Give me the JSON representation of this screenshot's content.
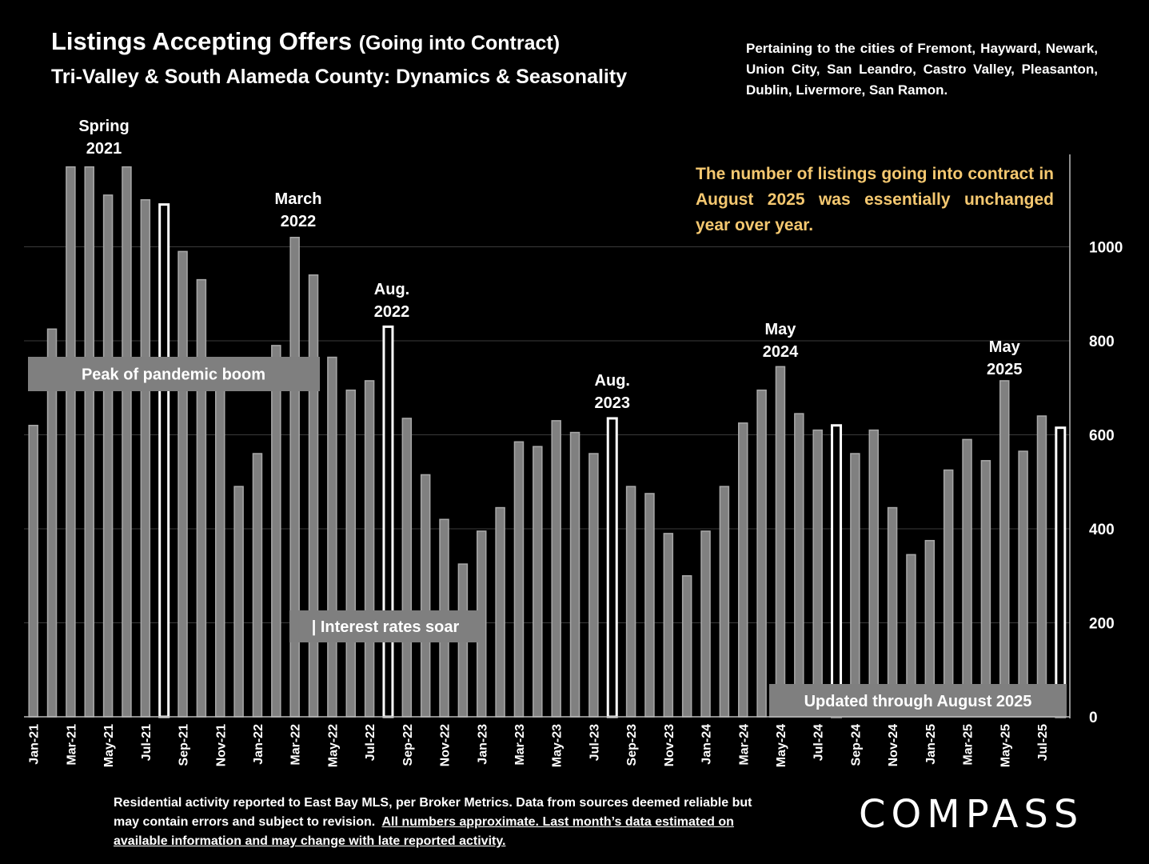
{
  "header": {
    "title": "Listings Accepting Offers",
    "title_paren": "(Going into Contract)",
    "subtitle": "Tri-Valley & South Alameda County: Dynamics & Seasonality",
    "cities": "Pertaining to the cities of Fremont, Hayward, Newark, Union City, San Leandro, Castro Valley, Pleasanton, Dublin, Livermore, San Ramon."
  },
  "callout": "The number of listings going into contract in August 2025 was essentially unchanged year over year.",
  "footer": {
    "note_plain": "Residential activity reported to East Bay MLS, per Broker Metrics. Data from sources deemed reliable but may contain errors and subject to revision.",
    "note_underlined": "All numbers approximate. Last month’s data estimated on available information and may change with late reported activity."
  },
  "logo": "COMPASS",
  "colors": {
    "bar": "#808080",
    "highlight_bar": "#ffffff",
    "callout": "#f5c870",
    "label_box": "#7f7f7f",
    "background": "#000000"
  },
  "chart_data": {
    "type": "bar",
    "ylim": [
      0,
      1180
    ],
    "yticks": [
      0,
      200,
      400,
      600,
      800,
      1000
    ],
    "y_axis_side": "right",
    "grid": true,
    "categories": [
      "Jan-21",
      "Feb-21",
      "Mar-21",
      "Apr-21",
      "May-21",
      "Jun-21",
      "Jul-21",
      "Aug-21",
      "Sep-21",
      "Oct-21",
      "Nov-21",
      "Dec-21",
      "Jan-22",
      "Feb-22",
      "Mar-22",
      "Apr-22",
      "May-22",
      "Jun-22",
      "Jul-22",
      "Aug-22",
      "Sep-22",
      "Oct-22",
      "Nov-22",
      "Dec-22",
      "Jan-23",
      "Feb-23",
      "Mar-23",
      "Apr-23",
      "May-23",
      "Jun-23",
      "Jul-23",
      "Aug-23",
      "Sep-23",
      "Oct-23",
      "Nov-23",
      "Dec-23",
      "Jan-24",
      "Feb-24",
      "Mar-24",
      "Apr-24",
      "May-24",
      "Jun-24",
      "Jul-24",
      "Aug-24",
      "Sep-24",
      "Oct-24",
      "Nov-24",
      "Dec-24",
      "Jan-25",
      "Feb-25",
      "Mar-25",
      "Apr-25",
      "May-25",
      "Jun-25",
      "Jul-25",
      "Aug-25"
    ],
    "tick_labels": [
      "Jan-21",
      "",
      "Mar-21",
      "",
      "May-21",
      "",
      "Jul-21",
      "",
      "Sep-21",
      "",
      "Nov-21",
      "",
      "Jan-22",
      "",
      "Mar-22",
      "",
      "May-22",
      "",
      "Jul-22",
      "",
      "Sep-22",
      "",
      "Nov-22",
      "",
      "Jan-23",
      "",
      "Mar-23",
      "",
      "May-23",
      "",
      "Jul-23",
      "",
      "Sep-23",
      "",
      "Nov-23",
      "",
      "Jan-24",
      "",
      "Mar-24",
      "",
      "May-24",
      "",
      "Jul-24",
      "",
      "Sep-24",
      "",
      "Nov-24",
      "",
      "Jan-25",
      "",
      "Mar-25",
      "",
      "May-25",
      "",
      "Jul-25",
      ""
    ],
    "values": [
      620,
      825,
      1170,
      1170,
      1110,
      1170,
      1100,
      1090,
      990,
      930,
      700,
      490,
      560,
      790,
      1020,
      940,
      765,
      695,
      715,
      830,
      635,
      515,
      420,
      325,
      395,
      445,
      585,
      575,
      630,
      605,
      560,
      635,
      490,
      475,
      390,
      300,
      395,
      490,
      625,
      695,
      745,
      645,
      610,
      620,
      560,
      610,
      445,
      345,
      375,
      525,
      590,
      545,
      715,
      565,
      640,
      615
    ],
    "highlight_months": [
      "Aug-21",
      "Aug-22",
      "Aug-23",
      "Aug-24",
      "Aug-25"
    ],
    "annotations": [
      {
        "text": "Spring\n2021",
        "at": "May-21"
      },
      {
        "text": "March\n2022",
        "at": "Mar-22"
      },
      {
        "text": "Aug.\n2022",
        "at": "Aug-22"
      },
      {
        "text": "Aug.\n2023",
        "at": "Aug-23"
      },
      {
        "text": "May\n2024",
        "at": "May-24"
      },
      {
        "text": "May\n2025",
        "at": "May-25"
      }
    ],
    "label_boxes": [
      {
        "text": "Peak of pandemic boom"
      },
      {
        "text": "| Interest rates soar"
      },
      {
        "text": "Updated through August 2025"
      }
    ]
  }
}
